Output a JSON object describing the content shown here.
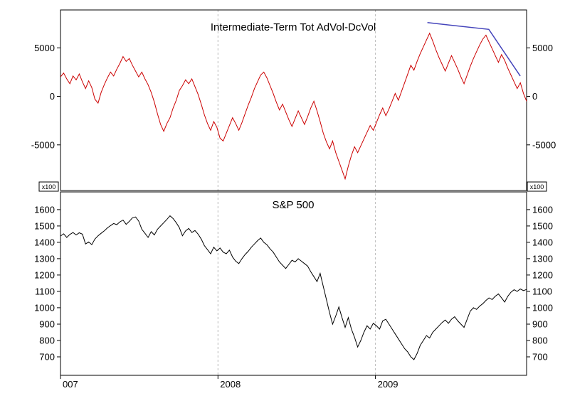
{
  "chart_data": [
    {
      "type": "line",
      "title": "Intermediate-Term Tot AdVol-DcVol",
      "unit_label": "x100",
      "yticks": [
        5000,
        0,
        -5000
      ],
      "ylim": [
        -9700,
        8900
      ],
      "series": [
        {
          "name": "Tot AdVol-DcVol",
          "color": "#cc0000",
          "values": [
            2000,
            2400,
            1800,
            1300,
            2100,
            1700,
            2300,
            1500,
            800,
            1600,
            900,
            -300,
            -700,
            400,
            1200,
            1900,
            2500,
            2100,
            2800,
            3400,
            4100,
            3600,
            3900,
            3200,
            2600,
            2000,
            2500,
            1800,
            1200,
            400,
            -600,
            -1800,
            -2900,
            -3600,
            -2800,
            -2200,
            -1200,
            -400,
            600,
            1100,
            1700,
            1300,
            1800,
            1000,
            200,
            -800,
            -1900,
            -2800,
            -3500,
            -2600,
            -3200,
            -4300,
            -4600,
            -3800,
            -3000,
            -2200,
            -2800,
            -3500,
            -2700,
            -1800,
            -900,
            -100,
            800,
            1500,
            2200,
            2500,
            1900,
            1100,
            300,
            -600,
            -1400,
            -800,
            -1600,
            -2400,
            -3100,
            -2300,
            -1500,
            -2200,
            -2900,
            -2100,
            -1200,
            -500,
            -1500,
            -2600,
            -3800,
            -4700,
            -5400,
            -4600,
            -5800,
            -6700,
            -7600,
            -8500,
            -7200,
            -6100,
            -5200,
            -5800,
            -5100,
            -4400,
            -3700,
            -3000,
            -3500,
            -2700,
            -1900,
            -1200,
            -2000,
            -1300,
            -500,
            300,
            -400,
            500,
            1400,
            2300,
            3200,
            2700,
            3600,
            4400,
            5100,
            5800,
            6500,
            5700,
            4800,
            4000,
            3300,
            2600,
            3400,
            4200,
            3500,
            2800,
            2000,
            1300,
            2200,
            3100,
            3900,
            4600,
            5300,
            5900,
            6300,
            5600,
            4900,
            4200,
            3500,
            4300,
            3700,
            2900,
            2200,
            1500,
            800,
            1400,
            300,
            -500
          ]
        }
      ],
      "annotations": [
        {
          "type": "trendline",
          "color": "#4444bb",
          "points": [
            [
              2009.33,
              7600
            ],
            [
              2009.72,
              6900
            ],
            [
              2009.92,
              2100
            ]
          ]
        }
      ]
    },
    {
      "type": "line",
      "title": "S&P 500",
      "yticks": [
        1600,
        1500,
        1400,
        1300,
        1200,
        1100,
        1000,
        900,
        800,
        700
      ],
      "ylim": [
        587,
        1708
      ],
      "series": [
        {
          "name": "S&P 500",
          "color": "#000000",
          "values": [
            1438,
            1452,
            1430,
            1448,
            1460,
            1445,
            1458,
            1450,
            1390,
            1402,
            1386,
            1420,
            1440,
            1455,
            1470,
            1488,
            1502,
            1515,
            1508,
            1525,
            1536,
            1510,
            1528,
            1550,
            1555,
            1530,
            1480,
            1455,
            1430,
            1465,
            1445,
            1480,
            1500,
            1520,
            1540,
            1562,
            1545,
            1520,
            1490,
            1440,
            1470,
            1485,
            1460,
            1472,
            1450,
            1420,
            1380,
            1355,
            1330,
            1370,
            1348,
            1365,
            1340,
            1330,
            1352,
            1310,
            1285,
            1270,
            1300,
            1325,
            1345,
            1370,
            1390,
            1410,
            1426,
            1400,
            1385,
            1360,
            1340,
            1310,
            1280,
            1260,
            1240,
            1265,
            1290,
            1280,
            1300,
            1285,
            1270,
            1255,
            1220,
            1190,
            1160,
            1210,
            1130,
            1050,
            970,
            900,
            950,
            1005,
            940,
            880,
            940,
            870,
            820,
            760,
            800,
            850,
            890,
            870,
            905,
            890,
            870,
            920,
            930,
            900,
            870,
            840,
            810,
            780,
            750,
            730,
            700,
            683,
            720,
            770,
            800,
            830,
            815,
            850,
            870,
            890,
            910,
            925,
            905,
            930,
            945,
            920,
            900,
            880,
            930,
            980,
            1000,
            990,
            1010,
            1025,
            1045,
            1060,
            1050,
            1070,
            1085,
            1060,
            1035,
            1070,
            1095,
            1110,
            1100,
            1115,
            1105,
            1112
          ]
        }
      ],
      "annotations": []
    }
  ],
  "x_axis": {
    "range": [
      2007.0,
      2009.96
    ],
    "labels": [
      {
        "text": "007",
        "year": 2007.0
      },
      {
        "text": "2008",
        "year": 2008.0
      },
      {
        "text": "2009",
        "year": 2009.0
      }
    ],
    "gridline_years": [
      2008,
      2009
    ]
  },
  "colors": {
    "grid": "#bbbbbb",
    "axis": "#000000",
    "background": "#ffffff"
  }
}
